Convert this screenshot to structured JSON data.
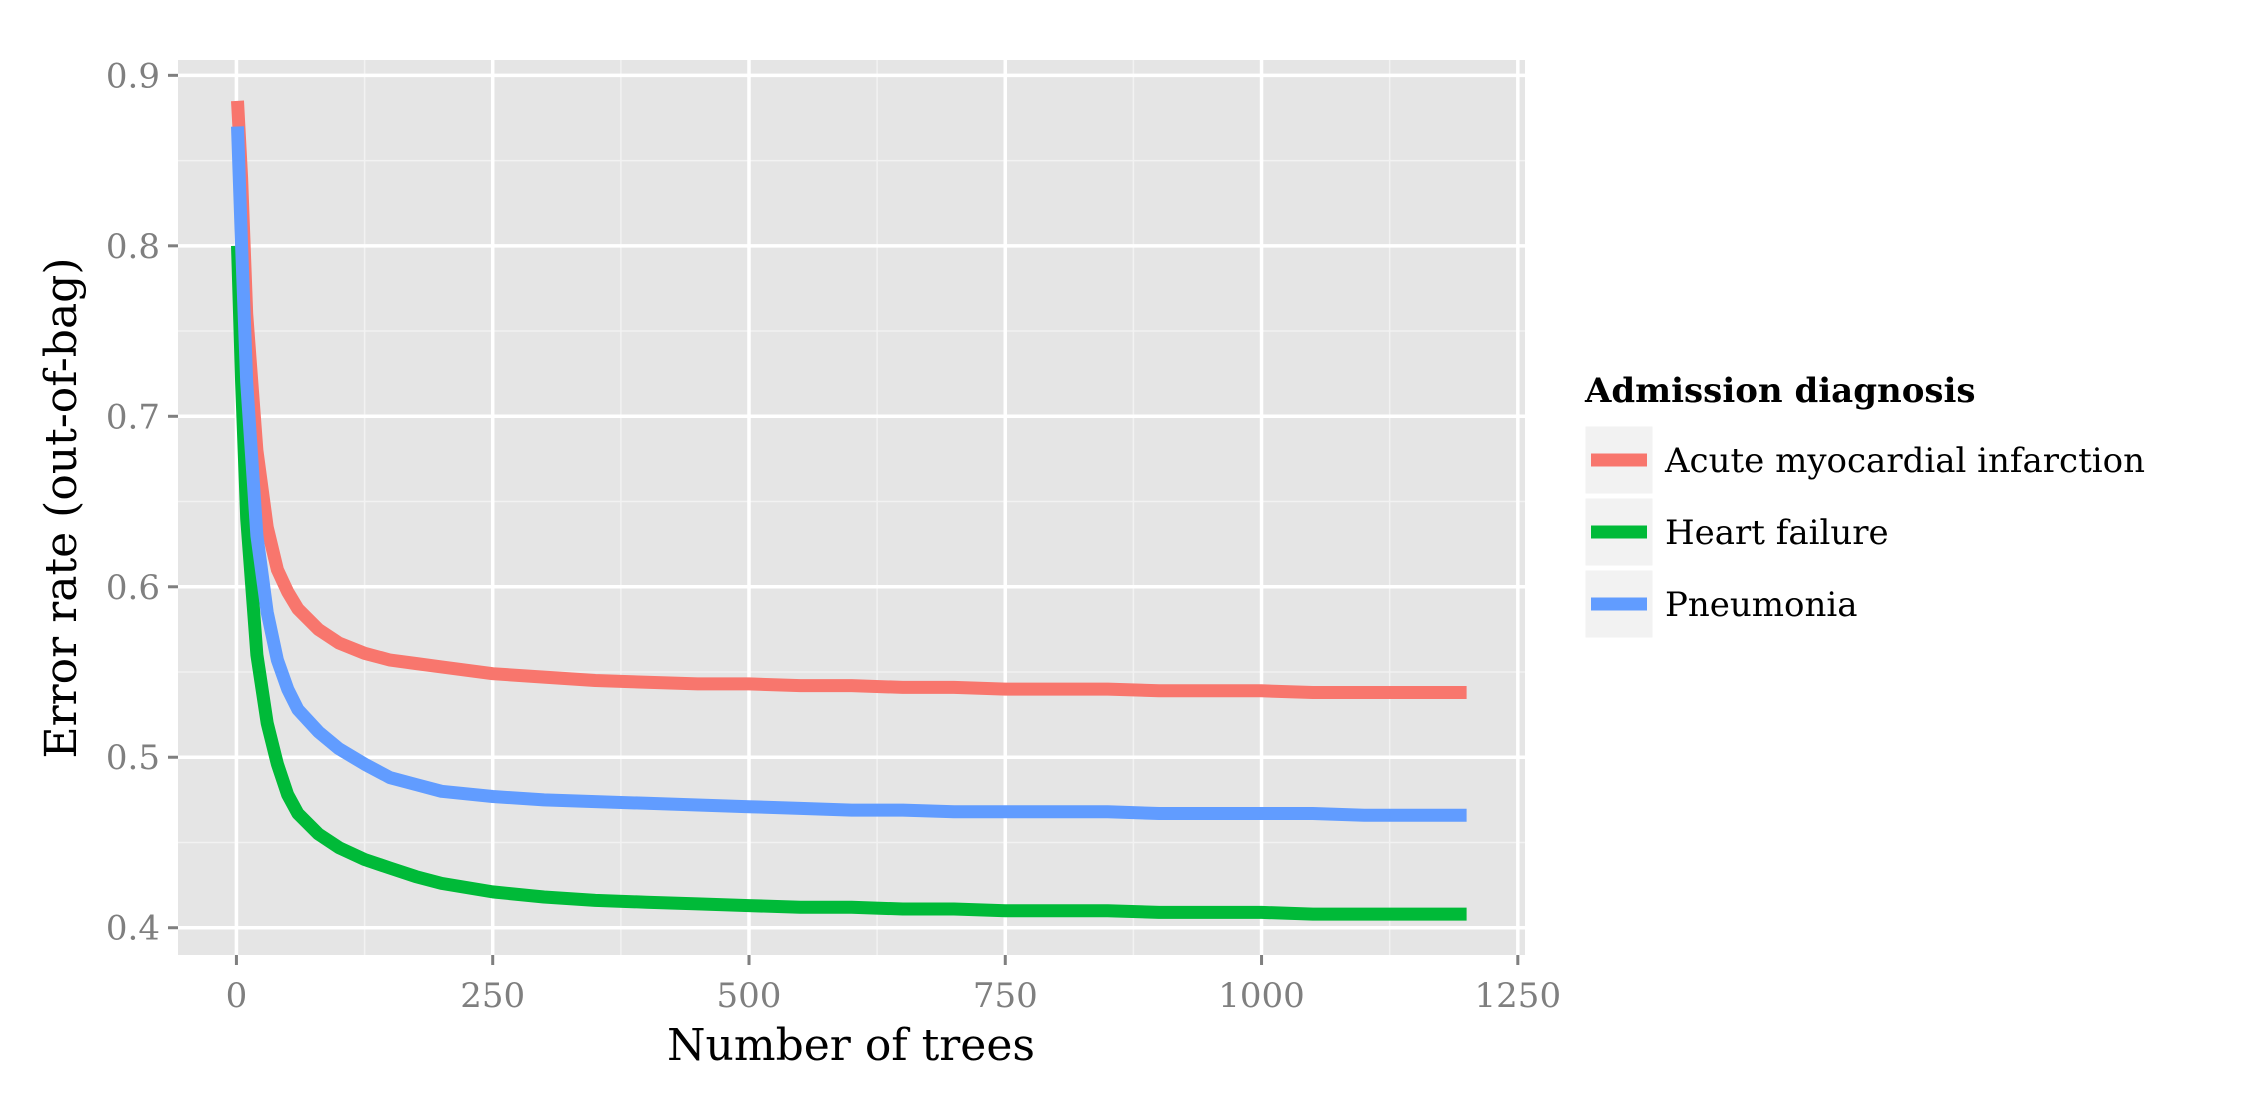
{
  "chart_data": {
    "type": "line",
    "title": "",
    "xlabel": "Number of trees",
    "ylabel": "Error rate (out-of-bag)",
    "xlim": [
      -57,
      1257
    ],
    "ylim": [
      0.384,
      0.909
    ],
    "xticks": [
      0,
      250,
      500,
      750,
      1000,
      1250
    ],
    "xtick_labels": [
      "0",
      "250",
      "500",
      "750",
      "1000",
      "1250"
    ],
    "yticks": [
      0.4,
      0.5,
      0.6,
      0.7,
      0.8,
      0.9
    ],
    "ytick_labels": [
      "0.4",
      "0.5",
      "0.6",
      "0.7",
      "0.8",
      "0.9"
    ],
    "grid": true,
    "legend": {
      "title": "Admission diagnosis",
      "placement": "right"
    },
    "series": [
      {
        "name": "Acute myocardial infarction",
        "color": "#F8766D",
        "x": [
          1,
          5,
          10,
          20,
          30,
          40,
          50,
          60,
          80,
          100,
          125,
          150,
          175,
          200,
          250,
          300,
          350,
          400,
          450,
          500,
          550,
          600,
          650,
          700,
          750,
          800,
          850,
          900,
          950,
          1000,
          1050,
          1100,
          1150,
          1200
        ],
        "y": [
          0.885,
          0.84,
          0.76,
          0.68,
          0.635,
          0.61,
          0.597,
          0.587,
          0.575,
          0.567,
          0.561,
          0.557,
          0.555,
          0.553,
          0.549,
          0.547,
          0.545,
          0.544,
          0.543,
          0.543,
          0.542,
          0.542,
          0.541,
          0.541,
          0.54,
          0.54,
          0.54,
          0.539,
          0.539,
          0.539,
          0.538,
          0.538,
          0.538,
          0.538
        ]
      },
      {
        "name": "Heart failure",
        "color": "#00BA38",
        "x": [
          1,
          5,
          10,
          20,
          30,
          40,
          50,
          60,
          80,
          100,
          125,
          150,
          175,
          200,
          250,
          300,
          350,
          400,
          450,
          500,
          550,
          600,
          650,
          700,
          750,
          800,
          850,
          900,
          950,
          1000,
          1050,
          1100,
          1150,
          1200
        ],
        "y": [
          0.8,
          0.72,
          0.64,
          0.56,
          0.52,
          0.496,
          0.478,
          0.467,
          0.455,
          0.447,
          0.44,
          0.435,
          0.43,
          0.426,
          0.421,
          0.418,
          0.416,
          0.415,
          0.414,
          0.413,
          0.412,
          0.412,
          0.411,
          0.411,
          0.41,
          0.41,
          0.41,
          0.409,
          0.409,
          0.409,
          0.408,
          0.408,
          0.408,
          0.408
        ]
      },
      {
        "name": "Pneumonia",
        "color": "#619CFF",
        "x": [
          1,
          5,
          10,
          20,
          30,
          40,
          50,
          60,
          80,
          100,
          125,
          150,
          175,
          200,
          250,
          300,
          350,
          400,
          450,
          500,
          550,
          600,
          650,
          700,
          750,
          800,
          850,
          900,
          950,
          1000,
          1050,
          1100,
          1150,
          1200
        ],
        "y": [
          0.87,
          0.8,
          0.72,
          0.63,
          0.585,
          0.557,
          0.54,
          0.528,
          0.515,
          0.505,
          0.496,
          0.488,
          0.484,
          0.48,
          0.477,
          0.475,
          0.474,
          0.473,
          0.472,
          0.471,
          0.47,
          0.469,
          0.469,
          0.468,
          0.468,
          0.468,
          0.468,
          0.467,
          0.467,
          0.467,
          0.467,
          0.466,
          0.466,
          0.466
        ]
      }
    ]
  }
}
